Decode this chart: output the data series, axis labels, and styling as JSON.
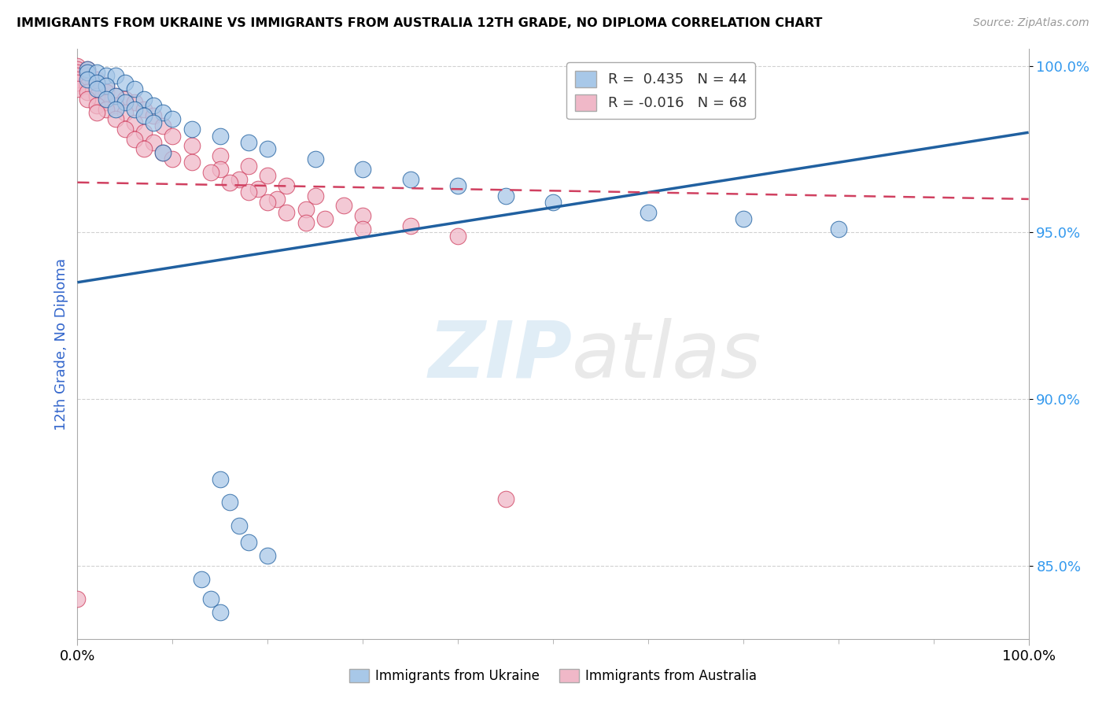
{
  "title": "IMMIGRANTS FROM UKRAINE VS IMMIGRANTS FROM AUSTRALIA 12TH GRADE, NO DIPLOMA CORRELATION CHART",
  "source": "Source: ZipAtlas.com",
  "ylabel": "12th Grade, No Diploma",
  "x_min": 0.0,
  "x_max": 0.1,
  "y_min": 0.828,
  "y_max": 1.005,
  "y_ticks": [
    0.85,
    0.9,
    0.95,
    1.0
  ],
  "y_tick_labels": [
    "85.0%",
    "90.0%",
    "95.0%",
    "100.0%"
  ],
  "ukraine_R": 0.435,
  "ukraine_N": 44,
  "australia_R": -0.016,
  "australia_N": 68,
  "ukraine_color": "#a8c8e8",
  "ukraine_line_color": "#2060a0",
  "australia_color": "#f0b8c8",
  "australia_line_color": "#d04060",
  "ukraine_scatter": [
    [
      0.001,
      0.999
    ],
    [
      0.001,
      0.998
    ],
    [
      0.002,
      0.998
    ],
    [
      0.003,
      0.997
    ],
    [
      0.004,
      0.997
    ],
    [
      0.001,
      0.996
    ],
    [
      0.002,
      0.995
    ],
    [
      0.005,
      0.995
    ],
    [
      0.003,
      0.994
    ],
    [
      0.006,
      0.993
    ],
    [
      0.002,
      0.993
    ],
    [
      0.004,
      0.991
    ],
    [
      0.007,
      0.99
    ],
    [
      0.003,
      0.99
    ],
    [
      0.005,
      0.989
    ],
    [
      0.008,
      0.988
    ],
    [
      0.006,
      0.987
    ],
    [
      0.004,
      0.987
    ],
    [
      0.009,
      0.986
    ],
    [
      0.007,
      0.985
    ],
    [
      0.01,
      0.984
    ],
    [
      0.008,
      0.983
    ],
    [
      0.012,
      0.981
    ],
    [
      0.015,
      0.979
    ],
    [
      0.018,
      0.977
    ],
    [
      0.02,
      0.975
    ],
    [
      0.009,
      0.974
    ],
    [
      0.025,
      0.972
    ],
    [
      0.03,
      0.969
    ],
    [
      0.035,
      0.966
    ],
    [
      0.04,
      0.964
    ],
    [
      0.045,
      0.961
    ],
    [
      0.05,
      0.959
    ],
    [
      0.06,
      0.956
    ],
    [
      0.07,
      0.954
    ],
    [
      0.08,
      0.951
    ],
    [
      0.015,
      0.876
    ],
    [
      0.016,
      0.869
    ],
    [
      0.017,
      0.862
    ],
    [
      0.018,
      0.857
    ],
    [
      0.02,
      0.853
    ],
    [
      0.013,
      0.846
    ],
    [
      0.014,
      0.84
    ],
    [
      0.015,
      0.836
    ]
  ],
  "australia_scatter": [
    [
      0.0,
      1.0
    ],
    [
      0.0,
      0.999
    ],
    [
      0.001,
      0.999
    ],
    [
      0.0,
      0.998
    ],
    [
      0.001,
      0.998
    ],
    [
      0.0,
      0.997
    ],
    [
      0.001,
      0.997
    ],
    [
      0.002,
      0.996
    ],
    [
      0.0,
      0.996
    ],
    [
      0.001,
      0.996
    ],
    [
      0.002,
      0.995
    ],
    [
      0.0,
      0.995
    ],
    [
      0.003,
      0.994
    ],
    [
      0.001,
      0.994
    ],
    [
      0.002,
      0.993
    ],
    [
      0.0,
      0.993
    ],
    [
      0.003,
      0.992
    ],
    [
      0.001,
      0.992
    ],
    [
      0.004,
      0.991
    ],
    [
      0.002,
      0.991
    ],
    [
      0.005,
      0.99
    ],
    [
      0.001,
      0.99
    ],
    [
      0.003,
      0.989
    ],
    [
      0.006,
      0.989
    ],
    [
      0.002,
      0.988
    ],
    [
      0.004,
      0.988
    ],
    [
      0.007,
      0.987
    ],
    [
      0.003,
      0.987
    ],
    [
      0.005,
      0.986
    ],
    [
      0.002,
      0.986
    ],
    [
      0.008,
      0.985
    ],
    [
      0.004,
      0.984
    ],
    [
      0.006,
      0.983
    ],
    [
      0.009,
      0.982
    ],
    [
      0.005,
      0.981
    ],
    [
      0.007,
      0.98
    ],
    [
      0.01,
      0.979
    ],
    [
      0.006,
      0.978
    ],
    [
      0.008,
      0.977
    ],
    [
      0.012,
      0.976
    ],
    [
      0.007,
      0.975
    ],
    [
      0.009,
      0.974
    ],
    [
      0.015,
      0.973
    ],
    [
      0.01,
      0.972
    ],
    [
      0.012,
      0.971
    ],
    [
      0.018,
      0.97
    ],
    [
      0.015,
      0.969
    ],
    [
      0.014,
      0.968
    ],
    [
      0.02,
      0.967
    ],
    [
      0.017,
      0.966
    ],
    [
      0.016,
      0.965
    ],
    [
      0.022,
      0.964
    ],
    [
      0.019,
      0.963
    ],
    [
      0.018,
      0.962
    ],
    [
      0.025,
      0.961
    ],
    [
      0.021,
      0.96
    ],
    [
      0.02,
      0.959
    ],
    [
      0.028,
      0.958
    ],
    [
      0.024,
      0.957
    ],
    [
      0.022,
      0.956
    ],
    [
      0.03,
      0.955
    ],
    [
      0.026,
      0.954
    ],
    [
      0.024,
      0.953
    ],
    [
      0.035,
      0.952
    ],
    [
      0.03,
      0.951
    ],
    [
      0.04,
      0.949
    ],
    [
      0.0,
      0.84
    ],
    [
      0.045,
      0.87
    ]
  ],
  "ukraine_line_x": [
    0.0,
    0.1
  ],
  "ukraine_line_y": [
    0.935,
    0.98
  ],
  "australia_line_x": [
    0.0,
    0.1
  ],
  "australia_line_y": [
    0.965,
    0.96
  ],
  "watermark_zip": "ZIP",
  "watermark_atlas": "atlas",
  "legend_ukraine_label": "Immigrants from Ukraine",
  "legend_australia_label": "Immigrants from Australia"
}
